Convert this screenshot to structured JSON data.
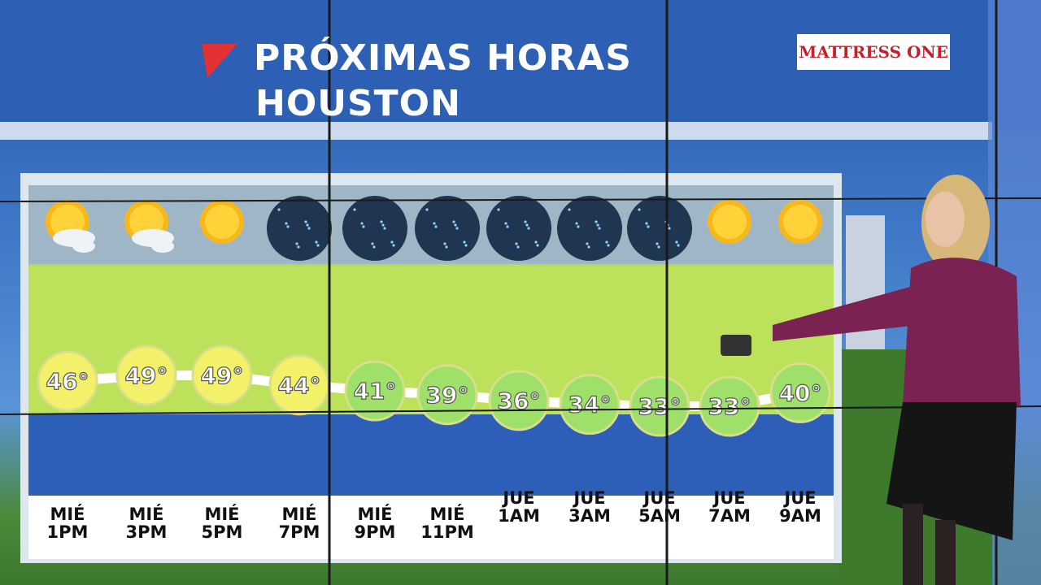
{
  "header": {
    "sponsor": "MATTRESS ONE"
  },
  "chart_data": {
    "type": "line",
    "title": "PRÓXIMAS HORAS",
    "subtitle": "HOUSTON",
    "categories": [
      "MIÉ 1PM",
      "MIÉ 3PM",
      "MIÉ 5PM",
      "MIÉ 7PM",
      "MIÉ 9PM",
      "MIÉ 11PM",
      "JUE 1AM",
      "JUE 3AM",
      "JUE 5AM",
      "JUE 7AM",
      "JUE 9AM"
    ],
    "values": [
      46,
      49,
      49,
      44,
      41,
      39,
      36,
      34,
      33,
      33,
      40
    ],
    "value_labels": [
      "46°",
      "49°",
      "49°",
      "44°",
      "41°",
      "39°",
      "36°",
      "34°",
      "33°",
      "33°",
      "40°"
    ],
    "color": "#ffffff"
  }
}
